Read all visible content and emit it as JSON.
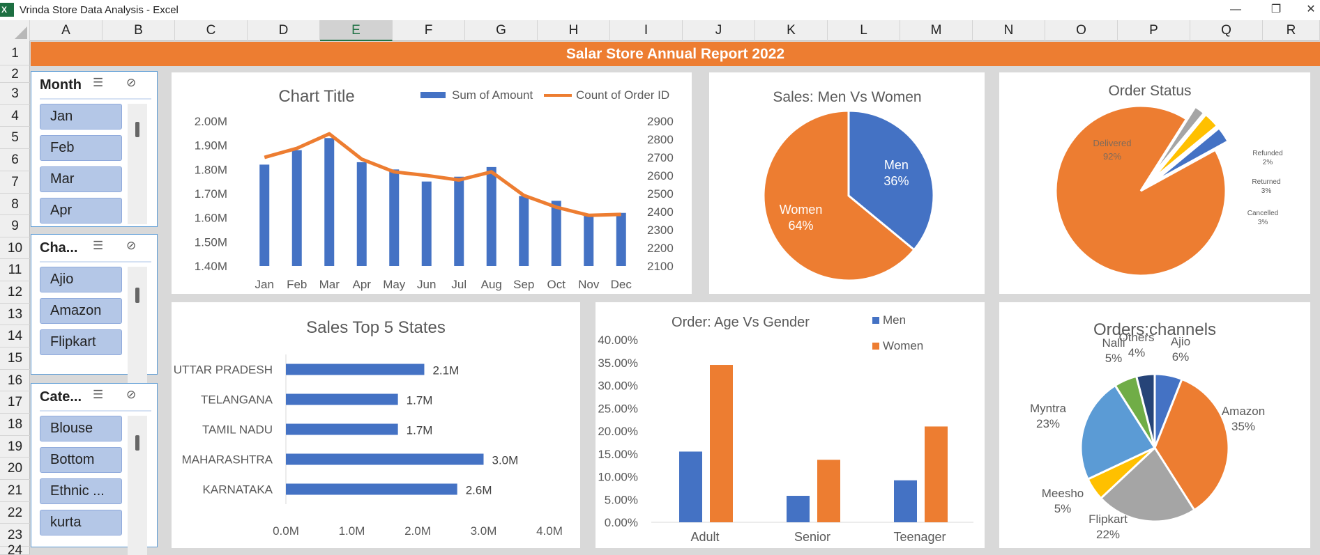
{
  "app": {
    "title": "Vrinda Store Data Analysis - Excel",
    "icon_letter": "X"
  },
  "window_controls": {
    "minimize": "—",
    "restore": "❐",
    "close": "✕"
  },
  "columns": [
    "A",
    "B",
    "C",
    "D",
    "E",
    "F",
    "G",
    "H",
    "I",
    "J",
    "K",
    "L",
    "M",
    "N",
    "O",
    "P",
    "Q",
    "R"
  ],
  "selected_column": "E",
  "rows": [
    "1",
    "2",
    "3",
    "4",
    "5",
    "6",
    "7",
    "8",
    "9",
    "10",
    "11",
    "12",
    "13",
    "14",
    "15",
    "16",
    "17",
    "18",
    "19",
    "20",
    "21",
    "22",
    "23",
    "24"
  ],
  "banner": "Salar Store Annual Report 2022",
  "slicers": [
    {
      "title": "Month",
      "items": [
        "Jan",
        "Feb",
        "Mar",
        "Apr"
      ]
    },
    {
      "title": "Cha...",
      "items": [
        "Ajio",
        "Amazon",
        "Flipkart"
      ]
    },
    {
      "title": "Cate...",
      "items": [
        "Blouse",
        "Bottom",
        "Ethnic ...",
        "kurta"
      ]
    }
  ],
  "slicer_icons": {
    "multi_select": "☰",
    "clear_filter": "⊘"
  },
  "chart_data": [
    {
      "type": "bar",
      "title": "Chart Title",
      "categories": [
        "Jan",
        "Feb",
        "Mar",
        "Apr",
        "May",
        "Jun",
        "Jul",
        "Aug",
        "Sep",
        "Oct",
        "Nov",
        "Dec"
      ],
      "series": [
        {
          "name": "Sum of Amount",
          "kind": "bar",
          "axis": "left",
          "values": [
            1.82,
            1.88,
            1.93,
            1.83,
            1.8,
            1.75,
            1.77,
            1.81,
            1.69,
            1.67,
            1.61,
            1.62
          ]
        },
        {
          "name": "Count of Order ID",
          "kind": "line",
          "axis": "right",
          "values": [
            2700,
            2750,
            2830,
            2690,
            2620,
            2600,
            2575,
            2620,
            2490,
            2425,
            2380,
            2385
          ]
        }
      ],
      "ylim": [
        1.4,
        2.0
      ],
      "y_ticks": [
        "1.40M",
        "1.50M",
        "1.60M",
        "1.70M",
        "1.80M",
        "1.90M",
        "2.00M"
      ],
      "y2lim": [
        2100,
        2900
      ],
      "y2_ticks": [
        "2100",
        "2200",
        "2300",
        "2400",
        "2500",
        "2600",
        "2700",
        "2800",
        "2900"
      ],
      "legend": "top-right",
      "colors": {
        "bar": "#4472c4",
        "line": "#ed7d31"
      }
    },
    {
      "type": "pie",
      "title": "Sales: Men Vs Women",
      "slices": [
        {
          "label": "Men",
          "value": 36,
          "pct_label": "36%",
          "color": "#4472c4"
        },
        {
          "label": "Women",
          "value": 64,
          "pct_label": "64%",
          "color": "#ed7d31"
        }
      ]
    },
    {
      "type": "pie",
      "title": "Order Status",
      "slices": [
        {
          "label": "Delivered",
          "value": 92,
          "pct_label": "92%",
          "color": "#ed7d31"
        },
        {
          "label": "Refunded",
          "value": 2,
          "pct_label": "2%",
          "color": "#a5a5a5"
        },
        {
          "label": "Returned",
          "value": 3,
          "pct_label": "3%",
          "color": "#ffc000"
        },
        {
          "label": "Cancelled",
          "value": 3,
          "pct_label": "3%",
          "color": "#4472c4"
        }
      ]
    },
    {
      "type": "bar",
      "orientation": "horizontal",
      "title": "Sales Top 5 States",
      "categories": [
        "UTTAR PRADESH",
        "TELANGANA",
        "TAMIL NADU",
        "MAHARASHTRA",
        "KARNATAKA"
      ],
      "values": [
        2.1,
        1.7,
        1.7,
        3.0,
        2.6
      ],
      "value_labels": [
        "2.1M",
        "1.7M",
        "1.7M",
        "3.0M",
        "2.6M"
      ],
      "xlim": [
        0,
        4
      ],
      "x_ticks": [
        "0.0M",
        "1.0M",
        "2.0M",
        "3.0M",
        "4.0M"
      ],
      "color": "#4472c4"
    },
    {
      "type": "bar",
      "title": "Order: Age Vs Gender",
      "categories": [
        "Adult",
        "Senior",
        "Teenager"
      ],
      "series": [
        {
          "name": "Men",
          "values": [
            15.5,
            5.8,
            9.2
          ],
          "color": "#4472c4"
        },
        {
          "name": "Women",
          "values": [
            34.5,
            13.7,
            21.0
          ],
          "color": "#ed7d31"
        }
      ],
      "ylim": [
        0,
        40
      ],
      "y_ticks": [
        "0.00%",
        "5.00%",
        "10.00%",
        "15.00%",
        "20.00%",
        "25.00%",
        "30.00%",
        "35.00%",
        "40.00%"
      ],
      "legend": "top-right"
    },
    {
      "type": "pie",
      "title": "Orders:channels",
      "slices": [
        {
          "label": "Ajio",
          "value": 6,
          "pct_label": "6%",
          "color": "#4472c4"
        },
        {
          "label": "Amazon",
          "value": 35,
          "pct_label": "35%",
          "color": "#ed7d31"
        },
        {
          "label": "Flipkart",
          "value": 22,
          "pct_label": "22%",
          "color": "#a5a5a5"
        },
        {
          "label": "Meesho",
          "value": 5,
          "pct_label": "5%",
          "color": "#ffc000"
        },
        {
          "label": "Myntra",
          "value": 23,
          "pct_label": "23%",
          "color": "#5b9bd5"
        },
        {
          "label": "Nalli",
          "value": 5,
          "pct_label": "5%",
          "color": "#70ad47"
        },
        {
          "label": "Others",
          "value": 4,
          "pct_label": "4%",
          "color": "#264478"
        }
      ]
    }
  ]
}
